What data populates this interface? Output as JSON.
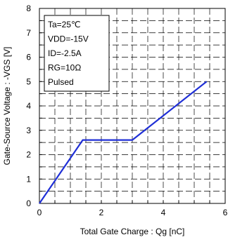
{
  "chart_data": {
    "type": "line",
    "xlabel": "Total Gate Charge : Qg  [nC]",
    "ylabel": "Gate-Source Voltage : -VGS [V]",
    "xlim": [
      0,
      6
    ],
    "ylim": [
      0,
      8
    ],
    "x_ticks": [
      0,
      2,
      4,
      6
    ],
    "y_ticks": [
      0,
      1,
      2,
      3,
      4,
      5,
      6,
      7,
      8
    ],
    "grid": true,
    "grid_style": "dashed",
    "conditions": [
      "Ta=25℃",
      "VDD=-15V",
      "ID=-2.5A",
      "RG=10Ω",
      "Pulsed"
    ],
    "series": [
      {
        "color": "#1f2fd6",
        "points": [
          [
            0,
            0
          ],
          [
            1.4,
            2.6
          ],
          [
            3.0,
            2.6
          ],
          [
            5.4,
            5.0
          ]
        ]
      }
    ]
  }
}
